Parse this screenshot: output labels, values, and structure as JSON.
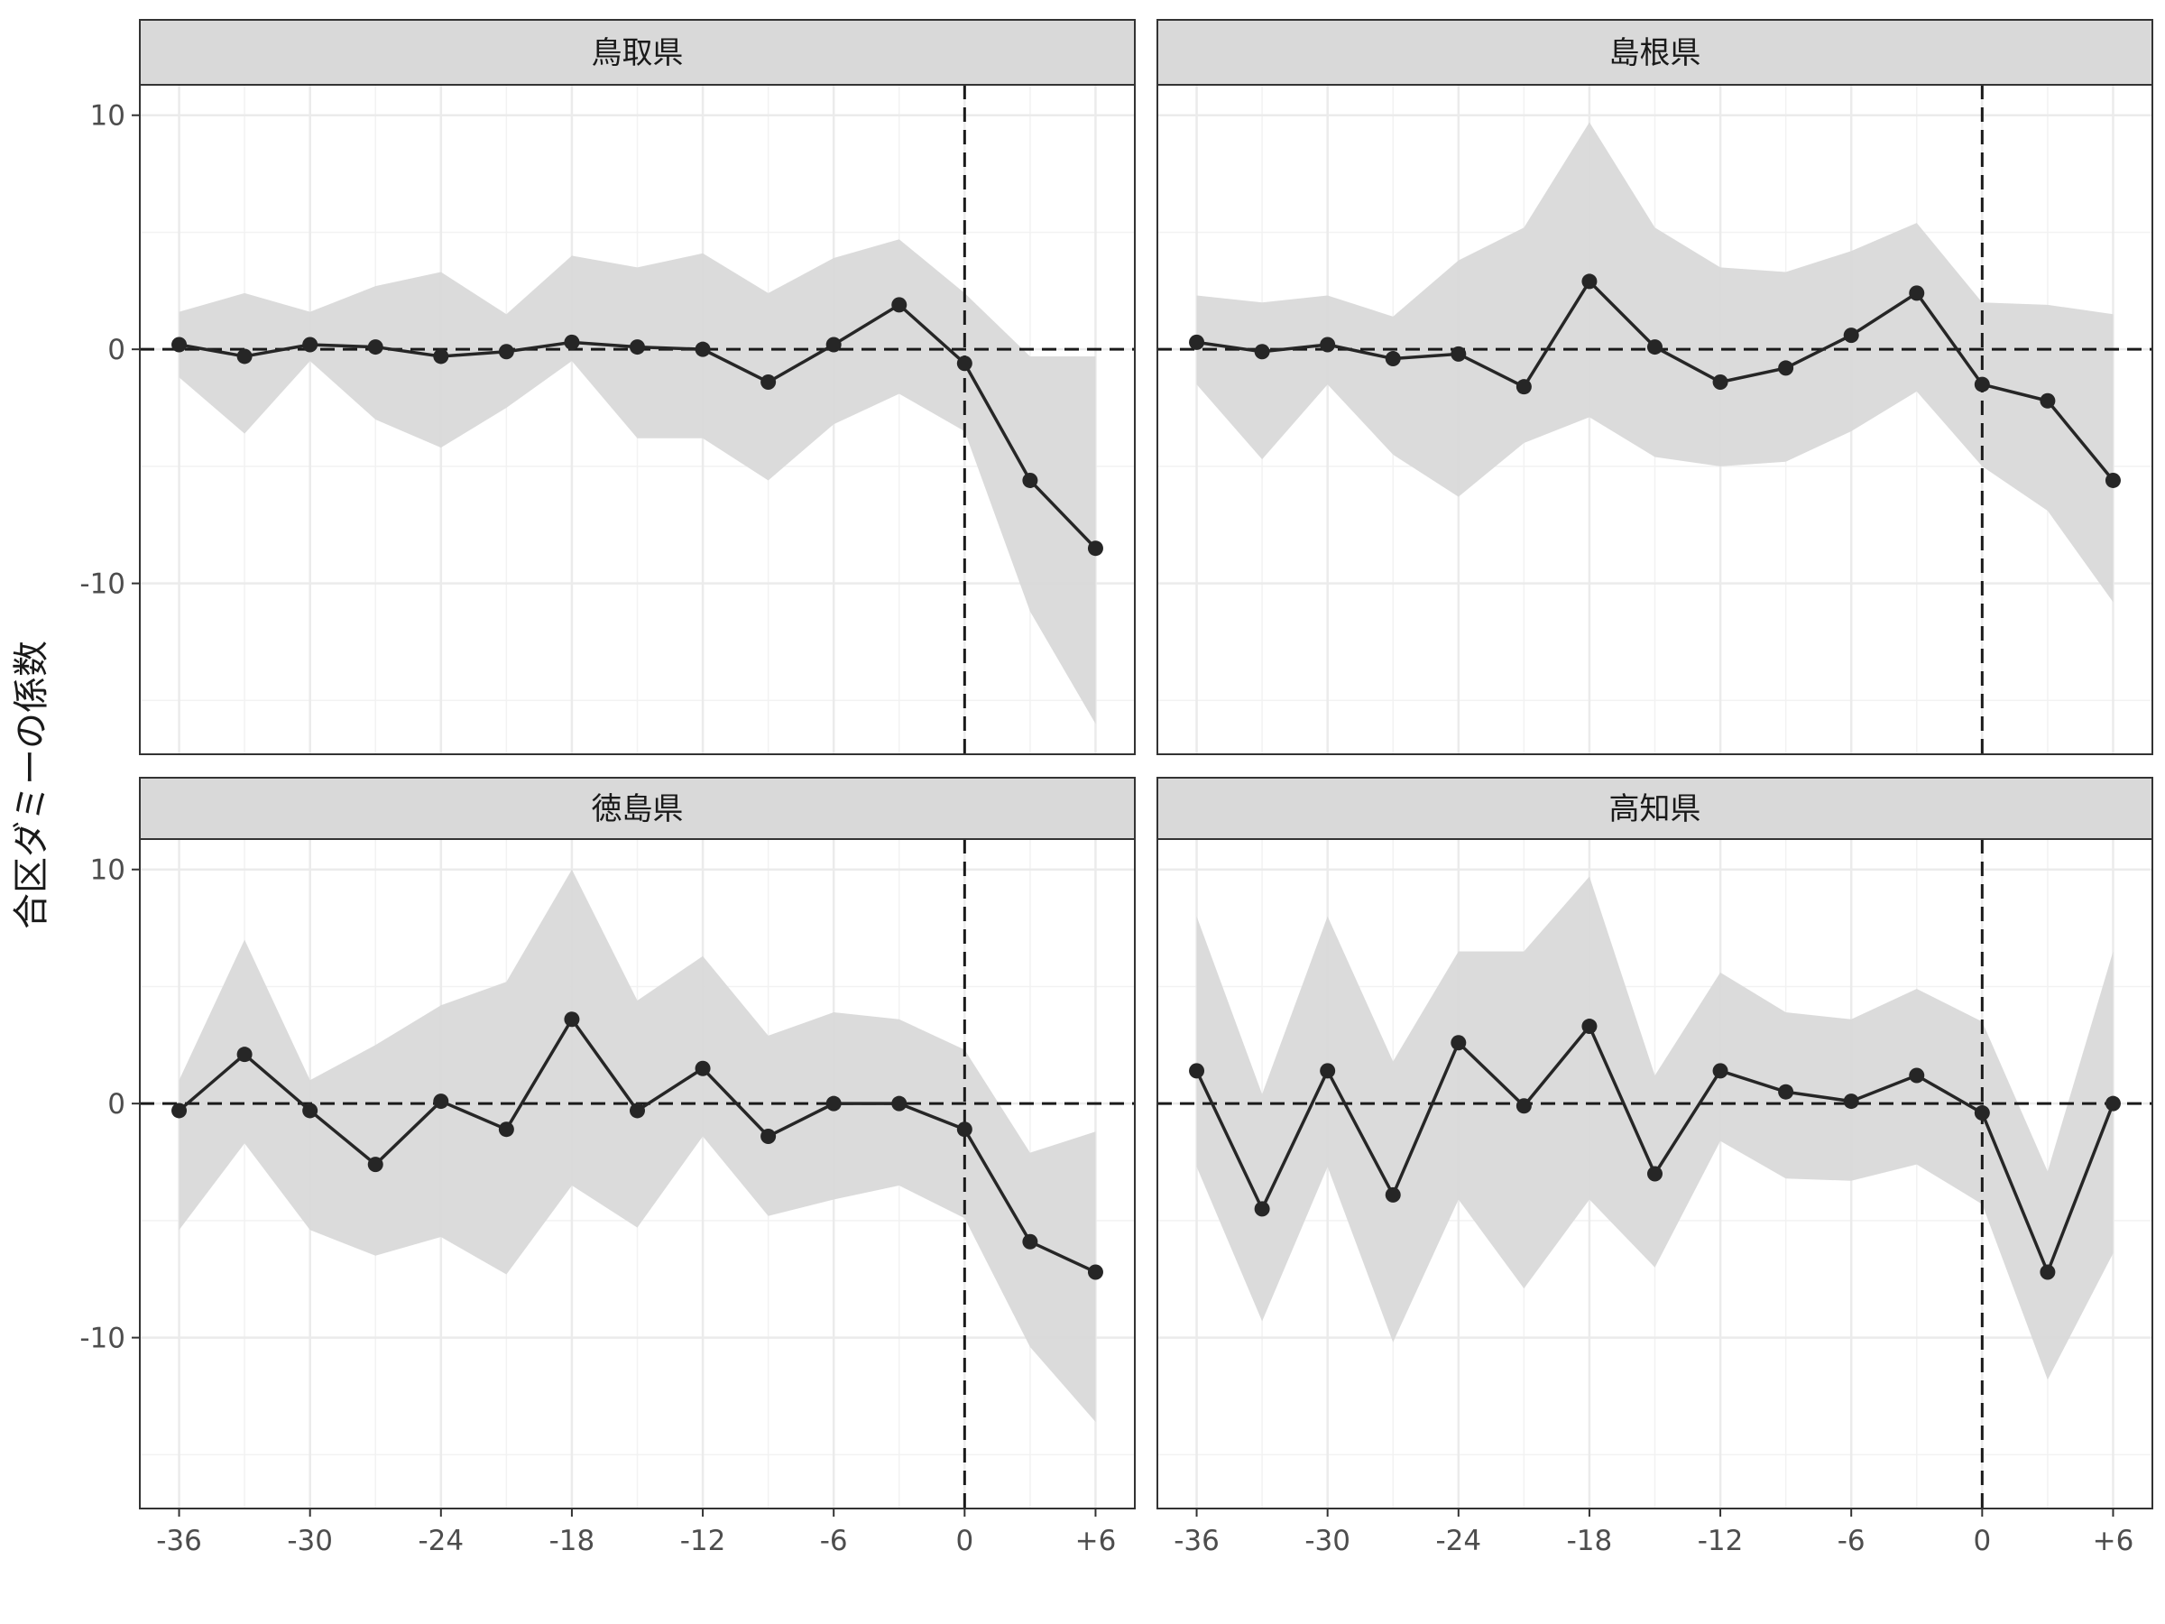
{
  "chart_data": {
    "type": "line",
    "ylabel": "合区ダミーの係数",
    "xlabel": "",
    "x": [
      -36,
      -33,
      -30,
      -27,
      -24,
      -21,
      -18,
      -15,
      -12,
      -9,
      -6,
      -3,
      0,
      3,
      6
    ],
    "x_tick_values": [
      -36,
      -30,
      -24,
      -18,
      -12,
      -6,
      0,
      6
    ],
    "x_tick_labels": [
      "-36",
      "-30",
      "-24",
      "-18",
      "-12",
      "-6",
      "0",
      "+6"
    ],
    "y_tick_values": [
      10,
      0,
      -10
    ],
    "y_tick_labels": [
      "10",
      "0",
      "-10"
    ],
    "xlim": [
      -37.8,
      7.8
    ],
    "ylim": [
      -17.3,
      11.3
    ],
    "reference_lines": {
      "x": 0,
      "y": 0
    },
    "line_color": "#262626",
    "ribbon_color": "#d9d9d9",
    "strip_color": "#d9d9d9",
    "grid": true,
    "facets": [
      {
        "label": "鳥取県",
        "y": [
          0.2,
          -0.3,
          0.2,
          0.1,
          -0.3,
          -0.1,
          0.3,
          0.1,
          0.0,
          -1.4,
          0.2,
          1.9,
          -0.6,
          -5.6,
          -8.5
        ],
        "lower": [
          -1.2,
          -3.6,
          -0.5,
          -3.0,
          -4.2,
          -2.5,
          -0.5,
          -3.8,
          -3.8,
          -5.6,
          -3.2,
          -1.9,
          -3.5,
          -11.2,
          -16.0
        ],
        "upper": [
          1.6,
          2.4,
          1.6,
          2.7,
          3.3,
          1.5,
          4.0,
          3.5,
          4.1,
          2.4,
          3.9,
          4.7,
          2.4,
          -0.3,
          -0.3
        ]
      },
      {
        "label": "島根県",
        "y": [
          0.3,
          -0.1,
          0.2,
          -0.4,
          -0.2,
          -1.6,
          2.9,
          0.1,
          -1.4,
          -0.8,
          0.6,
          2.4,
          -1.5,
          -2.2,
          -5.6
        ],
        "lower": [
          -1.5,
          -4.7,
          -1.5,
          -4.5,
          -6.3,
          -4.0,
          -2.9,
          -4.6,
          -5.0,
          -4.8,
          -3.5,
          -1.8,
          -5.0,
          -6.9,
          -10.8
        ],
        "upper": [
          2.3,
          2.0,
          2.3,
          1.4,
          3.8,
          5.2,
          9.7,
          5.2,
          3.5,
          3.3,
          4.2,
          5.4,
          2.0,
          1.9,
          1.5
        ]
      },
      {
        "label": "徳島県",
        "y": [
          -0.3,
          2.1,
          -0.3,
          -2.6,
          0.1,
          -1.1,
          3.6,
          -0.3,
          1.5,
          -1.4,
          0.0,
          0.0,
          -1.1,
          -5.9,
          -7.2
        ],
        "lower": [
          -5.4,
          -1.7,
          -5.4,
          -6.5,
          -5.7,
          -7.3,
          -3.5,
          -5.3,
          -1.4,
          -4.8,
          -4.1,
          -3.5,
          -4.9,
          -10.4,
          -13.6
        ],
        "upper": [
          1.0,
          7.0,
          1.0,
          2.5,
          4.2,
          5.2,
          10.0,
          4.4,
          6.3,
          2.9,
          3.9,
          3.6,
          2.3,
          -2.1,
          -1.2
        ]
      },
      {
        "label": "高知県",
        "y": [
          1.4,
          -4.5,
          1.4,
          -3.9,
          2.6,
          -0.1,
          3.3,
          -3.0,
          1.4,
          0.5,
          0.1,
          1.2,
          -0.4,
          -7.2,
          0.0
        ],
        "lower": [
          -2.7,
          -9.3,
          -2.7,
          -10.2,
          -4.1,
          -7.9,
          -4.1,
          -7.0,
          -1.6,
          -3.2,
          -3.3,
          -2.6,
          -4.3,
          -11.8,
          -6.4
        ],
        "upper": [
          8.0,
          0.4,
          8.0,
          1.8,
          6.5,
          6.5,
          9.7,
          1.2,
          5.6,
          3.9,
          3.6,
          4.9,
          3.5,
          -2.9,
          6.5
        ]
      }
    ]
  }
}
